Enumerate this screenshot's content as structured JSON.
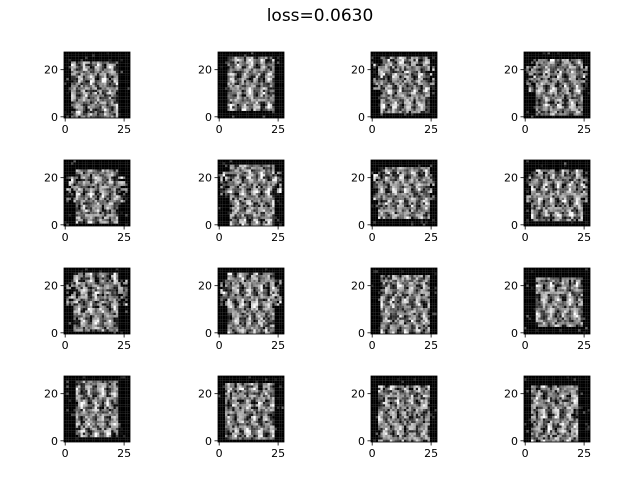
{
  "figure": {
    "title": "loss=0.0630"
  },
  "chart_data": {
    "type": "heatmap",
    "title": "loss=0.0630",
    "colormap": "gray",
    "grid": false,
    "layout": {
      "rows": 4,
      "cols": 4
    },
    "image_size": [
      28,
      28
    ],
    "panels": 16,
    "xticks": [
      0,
      25
    ],
    "yticks": [
      0,
      20
    ],
    "xtick_labels": [
      "0",
      "25"
    ],
    "ytick_labels": [
      "0",
      "20"
    ],
    "xlim": [
      -0.5,
      27.5
    ],
    "ylim": [
      27.5,
      -0.5
    ]
  }
}
